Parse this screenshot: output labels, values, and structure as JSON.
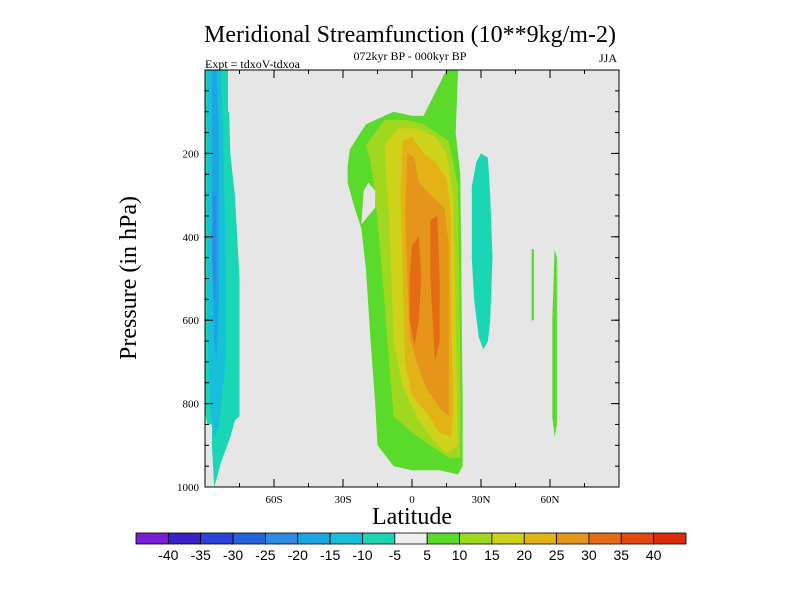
{
  "chart_data": {
    "type": "heatmap",
    "title": "Meridional Streamfunction (10**9kg/m-2)",
    "subtitle_center": "072kyr BP - 000kyr BP",
    "subtitle_left": "Expt = tdxoV-tdxoa",
    "subtitle_right": "JJA",
    "xlabel": "Latitude",
    "ylabel": "Pressure (in hPa)",
    "xlim": [
      -90,
      90
    ],
    "ylim": [
      1000,
      0
    ],
    "x_ticks": [
      {
        "value": -60,
        "label": "60S"
      },
      {
        "value": -30,
        "label": "30S"
      },
      {
        "value": 0,
        "label": "0"
      },
      {
        "value": 30,
        "label": "30N"
      },
      {
        "value": 60,
        "label": "60N"
      }
    ],
    "y_ticks": [
      {
        "value": 200,
        "label": "200"
      },
      {
        "value": 400,
        "label": "400"
      },
      {
        "value": 600,
        "label": "600"
      },
      {
        "value": 800,
        "label": "800"
      },
      {
        "value": 1000,
        "label": "1000"
      }
    ],
    "background_color": "#e6e6e6",
    "colorbar": {
      "levels": [
        "-40",
        "-35",
        "-30",
        "-25",
        "-20",
        "-15",
        "-10",
        "-5",
        "5",
        "10",
        "15",
        "20",
        "25",
        "30",
        "35",
        "40"
      ],
      "colors": [
        "#7a1fd6",
        "#3a21c8",
        "#2c43d9",
        "#2563d8",
        "#2f8be2",
        "#1ca6e0",
        "#16c0d8",
        "#1ad6b4",
        "#efefef",
        "#5adb2c",
        "#a0d820",
        "#cfd21a",
        "#e2b216",
        "#e4951a",
        "#e46c14",
        "#e04a10",
        "#db2a0e"
      ]
    },
    "regions": [
      {
        "name": "sh-negative-cell",
        "value_range": [
          -10,
          -5
        ],
        "color": "#1ad6b4",
        "polygon": [
          [
            -88,
            0
          ],
          [
            -80,
            0
          ],
          [
            -79,
            200
          ],
          [
            -77,
            300
          ],
          [
            -75,
            500
          ],
          [
            -75,
            830
          ],
          [
            -77,
            840
          ],
          [
            -79,
            880
          ],
          [
            -83,
            940
          ],
          [
            -86,
            1000
          ],
          [
            -87,
            900
          ],
          [
            -87,
            850
          ],
          [
            -89,
            850
          ],
          [
            -90,
            820
          ],
          [
            -90,
            0
          ]
        ]
      },
      {
        "name": "sh-core-15",
        "value_range": [
          -15,
          -10
        ],
        "color": "#16c0d8",
        "polygon": [
          [
            -89,
            0
          ],
          [
            -83,
            0
          ],
          [
            -82,
            200
          ],
          [
            -81,
            450
          ],
          [
            -81,
            700
          ],
          [
            -83,
            800
          ],
          [
            -84,
            860
          ],
          [
            -86,
            880
          ],
          [
            -88,
            800
          ],
          [
            -89,
            600
          ]
        ]
      },
      {
        "name": "sh-core-20",
        "value_range": [
          -20,
          -15
        ],
        "color": "#1ca6e0",
        "polygon": [
          [
            -87,
            0
          ],
          [
            -85,
            0
          ],
          [
            -84,
            150
          ],
          [
            -84,
            350
          ],
          [
            -84,
            550
          ],
          [
            -85,
            700
          ],
          [
            -86,
            650
          ],
          [
            -87,
            450
          ],
          [
            -87,
            250
          ]
        ]
      },
      {
        "name": "sh-core-25",
        "value_range": [
          -25,
          -20
        ],
        "color": "#2f8be2",
        "polygon": [
          [
            -86.5,
            300
          ],
          [
            -85,
            300
          ],
          [
            -85,
            500
          ],
          [
            -86,
            560
          ],
          [
            -86.8,
            450
          ]
        ]
      },
      {
        "name": "sh-trace",
        "value_range": [
          -5,
          5
        ],
        "color": "#e6e6e6",
        "polygon": [
          [
            -80,
            0
          ],
          [
            -79,
            0
          ],
          [
            -79,
            100
          ],
          [
            -80,
            100
          ]
        ]
      },
      {
        "name": "tropical-cell-5",
        "value_range": [
          5,
          10
        ],
        "color": "#5adb2c",
        "polygon": [
          [
            -27,
            190
          ],
          [
            -20,
            130
          ],
          [
            -8,
            100
          ],
          [
            0,
            110
          ],
          [
            5,
            110
          ],
          [
            15,
            0
          ],
          [
            20,
            0
          ],
          [
            19,
            150
          ],
          [
            21,
            250
          ],
          [
            22,
            800
          ],
          [
            22,
            950
          ],
          [
            20,
            970
          ],
          [
            12,
            960
          ],
          [
            0,
            960
          ],
          [
            -8,
            950
          ],
          [
            -15,
            900
          ],
          [
            -16,
            800
          ],
          [
            -18,
            650
          ],
          [
            -20,
            480
          ],
          [
            -22,
            380
          ],
          [
            -25,
            330
          ],
          [
            -28,
            270
          ],
          [
            -28,
            230
          ]
        ]
      },
      {
        "name": "tropical-cell-10",
        "value_range": [
          10,
          15
        ],
        "color": "#a0d820",
        "polygon": [
          [
            -20,
            180
          ],
          [
            -12,
            120
          ],
          [
            -2,
            120
          ],
          [
            5,
            130
          ],
          [
            16,
            170
          ],
          [
            20,
            280
          ],
          [
            21,
            700
          ],
          [
            21,
            930
          ],
          [
            16,
            930
          ],
          [
            8,
            900
          ],
          [
            0,
            870
          ],
          [
            -8,
            830
          ],
          [
            -10,
            700
          ],
          [
            -12,
            550
          ],
          [
            -14,
            420
          ],
          [
            -16,
            300
          ],
          [
            -18,
            220
          ]
        ]
      },
      {
        "name": "tropical-cell-15",
        "value_range": [
          15,
          20
        ],
        "color": "#cfd21a",
        "polygon": [
          [
            -12,
            180
          ],
          [
            -6,
            140
          ],
          [
            2,
            140
          ],
          [
            10,
            160
          ],
          [
            15,
            200
          ],
          [
            18,
            300
          ],
          [
            19,
            600
          ],
          [
            20,
            900
          ],
          [
            15,
            920
          ],
          [
            8,
            880
          ],
          [
            2,
            830
          ],
          [
            -4,
            760
          ],
          [
            -8,
            650
          ],
          [
            -9,
            500
          ],
          [
            -10,
            350
          ]
        ]
      },
      {
        "name": "tropical-cell-20",
        "value_range": [
          20,
          25
        ],
        "color": "#e2b216",
        "polygon": [
          [
            -4,
            170
          ],
          [
            0,
            160
          ],
          [
            5,
            200
          ],
          [
            10,
            220
          ],
          [
            15,
            260
          ],
          [
            17,
            350
          ],
          [
            17,
            600
          ],
          [
            18,
            800
          ],
          [
            17,
            880
          ],
          [
            12,
            870
          ],
          [
            6,
            820
          ],
          [
            0,
            780
          ],
          [
            -3,
            700
          ],
          [
            -4,
            500
          ],
          [
            -5,
            300
          ]
        ]
      },
      {
        "name": "tropical-cell-25",
        "value_range": [
          25,
          30
        ],
        "color": "#e4951a",
        "polygon": [
          [
            -2,
            200
          ],
          [
            1,
            210
          ],
          [
            3,
            270
          ],
          [
            8,
            300
          ],
          [
            14,
            330
          ],
          [
            16,
            420
          ],
          [
            16,
            700
          ],
          [
            16,
            830
          ],
          [
            12,
            810
          ],
          [
            6,
            760
          ],
          [
            2,
            700
          ],
          [
            -1,
            640
          ],
          [
            -2,
            500
          ],
          [
            -3,
            350
          ]
        ]
      },
      {
        "name": "tropical-cell-30",
        "value_range": [
          30,
          35
        ],
        "color": "#e46c14",
        "polygon": [
          [
            0,
            420
          ],
          [
            3,
            400
          ],
          [
            4,
            500
          ],
          [
            3,
            600
          ],
          [
            1,
            660
          ],
          [
            -1,
            600
          ],
          [
            -1,
            500
          ]
        ]
      },
      {
        "name": "tropical-cell-30-b",
        "value_range": [
          30,
          35
        ],
        "color": "#e46c14",
        "polygon": [
          [
            8,
            360
          ],
          [
            11,
            350
          ],
          [
            12,
            500
          ],
          [
            12,
            650
          ],
          [
            10,
            700
          ],
          [
            9,
            600
          ],
          [
            8,
            500
          ]
        ]
      },
      {
        "name": "tropical-hole",
        "value_range": [
          -5,
          5
        ],
        "color": "#e6e6e6",
        "polygon": [
          [
            -22,
            370
          ],
          [
            -21,
            290
          ],
          [
            -19,
            270
          ],
          [
            -16,
            290
          ],
          [
            -16,
            330
          ],
          [
            -19,
            350
          ]
        ]
      },
      {
        "name": "nh-negative-cell",
        "value_range": [
          -10,
          -5
        ],
        "color": "#1ad6b4",
        "polygon": [
          [
            26,
            280
          ],
          [
            28,
            220
          ],
          [
            30,
            200
          ],
          [
            33,
            210
          ],
          [
            34,
            300
          ],
          [
            35,
            450
          ],
          [
            34,
            600
          ],
          [
            33,
            650
          ],
          [
            31,
            670
          ],
          [
            29,
            640
          ],
          [
            27,
            550
          ],
          [
            26,
            450
          ]
        ]
      },
      {
        "name": "nh-thin-cell-a",
        "value_range": [
          5,
          10
        ],
        "color": "#5adb2c",
        "polygon": [
          [
            52,
            430
          ],
          [
            53,
            430
          ],
          [
            53,
            600
          ],
          [
            52,
            600
          ]
        ]
      },
      {
        "name": "nh-thin-cell-b",
        "value_range": [
          5,
          10
        ],
        "color": "#5adb2c",
        "polygon": [
          [
            62,
            430
          ],
          [
            63,
            450
          ],
          [
            63,
            700
          ],
          [
            63,
            850
          ],
          [
            62,
            880
          ],
          [
            61,
            830
          ],
          [
            61,
            600
          ]
        ]
      }
    ]
  }
}
